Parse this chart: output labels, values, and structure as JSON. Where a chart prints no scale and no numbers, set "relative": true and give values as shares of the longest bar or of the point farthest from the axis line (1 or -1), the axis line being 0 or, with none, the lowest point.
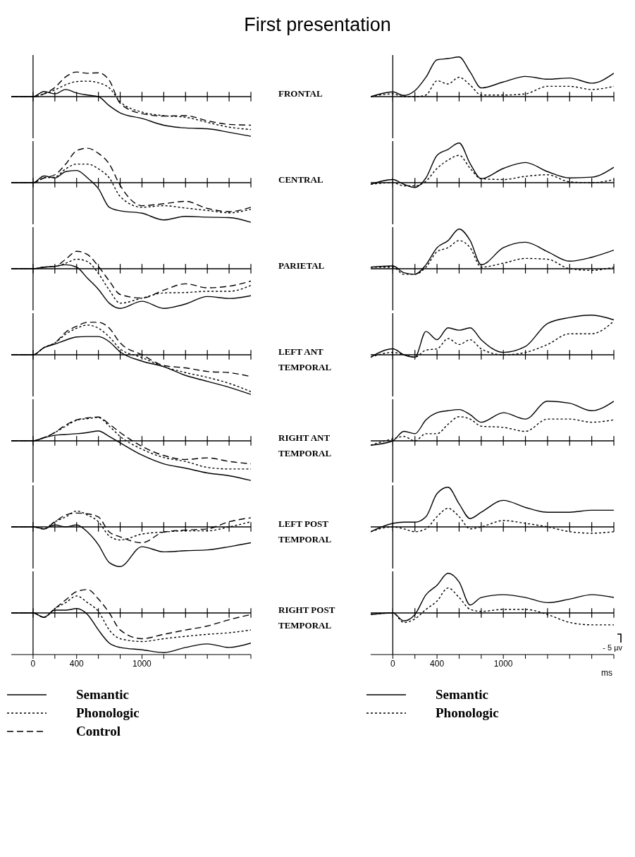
{
  "chart_data": [
    {
      "type": "line",
      "title": "First presentation",
      "relative": true,
      "x": [
        -200,
        0,
        100,
        200,
        300,
        400,
        500,
        600,
        700,
        800,
        1000,
        1200,
        1400,
        1600,
        1800,
        2000
      ],
      "xlim": [
        -200,
        2000
      ],
      "xticks": [
        0,
        {
          "value": 200,
          "label": null
        },
        400,
        {
          "value": 600,
          "label": null
        },
        {
          "value": 800,
          "label": null
        },
        1000,
        {
          "value": 1200,
          "label": null
        },
        {
          "value": 1400,
          "label": null
        },
        {
          "value": 1600,
          "label": null
        },
        {
          "value": 1800,
          "label": null
        },
        {
          "value": 2000,
          "label": null
        }
      ],
      "tick_labels": false,
      "series": [
        {
          "color": "#000000",
          "line_style": "solid",
          "values": [
            0,
            0,
            0.13,
            0.07,
            0.18,
            0.09,
            0.04,
            0,
            -0.23,
            -0.41,
            -0.55,
            -0.72,
            -0.79,
            -0.81,
            -0.9,
            -1
          ]
        },
        {
          "color": "#000000",
          "line_style": "dotted",
          "values": [
            0,
            0,
            0.07,
            0.17,
            0.3,
            0.38,
            0.39,
            0.35,
            0.22,
            -0.13,
            -0.39,
            -0.48,
            -0.52,
            -0.65,
            -0.77,
            -0.83
          ]
        },
        {
          "color": "#000000",
          "line_style": "dashed",
          "values": [
            0,
            0,
            0.07,
            0.23,
            0.5,
            0.62,
            0.59,
            0.6,
            0.41,
            -0.17,
            -0.43,
            -0.49,
            -0.48,
            -0.61,
            -0.7,
            -0.72
          ]
        }
      ]
    },
    {
      "type": "line",
      "ylabel": "FRONTAL",
      "relative": true,
      "x": [
        -200,
        0,
        100,
        200,
        300,
        400,
        500,
        600,
        700,
        800,
        1000,
        1200,
        1400,
        1600,
        1800,
        2000
      ],
      "xlim": [
        -200,
        2000
      ],
      "xticks": [
        0,
        {
          "value": 200,
          "label": null
        },
        400,
        {
          "value": 600,
          "label": null
        },
        {
          "value": 800,
          "label": null
        },
        1000,
        {
          "value": 1200,
          "label": null
        },
        {
          "value": 1400,
          "label": null
        },
        {
          "value": 1600,
          "label": null
        },
        {
          "value": 1800,
          "label": null
        },
        {
          "value": 2000,
          "label": null
        }
      ],
      "tick_labels": false,
      "series": [
        {
          "color": "#000000",
          "line_style": "solid",
          "values": [
            0,
            0.12,
            0.03,
            0.15,
            0.49,
            0.93,
            0.96,
            1,
            0.62,
            0.22,
            0.37,
            0.51,
            0.44,
            0.47,
            0.34,
            0.59
          ]
        },
        {
          "color": "#000000",
          "line_style": "dotted",
          "values": [
            0,
            0.07,
            0,
            0,
            0.04,
            0.4,
            0.32,
            0.49,
            0.29,
            0.04,
            0.04,
            0.07,
            0.26,
            0.26,
            0.18,
            0.26
          ]
        }
      ]
    },
    {
      "type": "line",
      "relative": true,
      "x": [
        -200,
        0,
        100,
        200,
        300,
        400,
        500,
        600,
        700,
        800,
        1000,
        1200,
        1400,
        1600,
        1800,
        2000
      ],
      "xlim": [
        -200,
        2000
      ],
      "xticks": [
        0,
        {
          "value": 200,
          "label": null
        },
        400,
        {
          "value": 600,
          "label": null
        },
        {
          "value": 800,
          "label": null
        },
        1000,
        {
          "value": 1200,
          "label": null
        },
        {
          "value": 1400,
          "label": null
        },
        {
          "value": 1600,
          "label": null
        },
        {
          "value": 1800,
          "label": null
        },
        {
          "value": 2000,
          "label": null
        }
      ],
      "tick_labels": false,
      "series": [
        {
          "color": "#000000",
          "line_style": "solid",
          "values": [
            0,
            0,
            0.17,
            0.12,
            0.28,
            0.31,
            0.12,
            -0.15,
            -0.62,
            -0.71,
            -0.77,
            -0.94,
            -0.85,
            -0.87,
            -0.88,
            -1
          ]
        },
        {
          "color": "#000000",
          "line_style": "dotted",
          "values": [
            0,
            0,
            0.12,
            0.14,
            0.35,
            0.47,
            0.47,
            0.35,
            0.12,
            -0.35,
            -0.62,
            -0.58,
            -0.64,
            -0.7,
            -0.76,
            -0.67
          ]
        },
        {
          "color": "#000000",
          "line_style": "dashed",
          "values": [
            0,
            0,
            0.12,
            0.2,
            0.47,
            0.81,
            0.87,
            0.74,
            0.47,
            -0.07,
            -0.58,
            -0.53,
            -0.47,
            -0.65,
            -0.73,
            -0.62
          ]
        }
      ]
    },
    {
      "type": "line",
      "ylabel": "CENTRAL",
      "relative": true,
      "x": [
        -200,
        0,
        100,
        200,
        300,
        400,
        500,
        600,
        700,
        800,
        1000,
        1200,
        1400,
        1600,
        1800,
        2000
      ],
      "xlim": [
        -200,
        2000
      ],
      "xticks": [
        0,
        {
          "value": 200,
          "label": null
        },
        400,
        {
          "value": 600,
          "label": null
        },
        {
          "value": 800,
          "label": null
        },
        1000,
        {
          "value": 1200,
          "label": null
        },
        {
          "value": 1400,
          "label": null
        },
        {
          "value": 1600,
          "label": null
        },
        {
          "value": 1800,
          "label": null
        },
        {
          "value": 2000,
          "label": null
        }
      ],
      "tick_labels": false,
      "series": [
        {
          "color": "#000000",
          "line_style": "solid",
          "values": [
            -0.04,
            0.08,
            -0.04,
            -0.12,
            0.12,
            0.69,
            0.84,
            1,
            0.48,
            0.1,
            0.36,
            0.51,
            0.28,
            0.12,
            0.14,
            0.39
          ]
        },
        {
          "color": "#000000",
          "line_style": "dotted",
          "values": [
            -0.04,
            0,
            -0.08,
            -0.08,
            0.04,
            0.36,
            0.57,
            0.69,
            0.36,
            0.1,
            0.08,
            0.16,
            0.2,
            0.02,
            0,
            0.08
          ]
        }
      ]
    },
    {
      "type": "line",
      "relative": true,
      "x": [
        -200,
        0,
        100,
        200,
        300,
        400,
        500,
        600,
        700,
        800,
        1000,
        1200,
        1400,
        1600,
        1800,
        2000
      ],
      "xlim": [
        -200,
        2000
      ],
      "xticks": [
        0,
        {
          "value": 200,
          "label": null
        },
        400,
        {
          "value": 600,
          "label": null
        },
        {
          "value": 800,
          "label": null
        },
        1000,
        {
          "value": 1200,
          "label": null
        },
        {
          "value": 1400,
          "label": null
        },
        {
          "value": 1600,
          "label": null
        },
        {
          "value": 1800,
          "label": null
        },
        {
          "value": 2000,
          "label": null
        }
      ],
      "tick_labels": false,
      "series": [
        {
          "color": "#000000",
          "line_style": "solid",
          "values": [
            0,
            0,
            0.04,
            0.06,
            0.1,
            0.04,
            -0.24,
            -0.52,
            -0.87,
            -1,
            -0.82,
            -1,
            -0.89,
            -0.7,
            -0.75,
            -0.68
          ]
        },
        {
          "color": "#000000",
          "line_style": "dotted",
          "values": [
            0,
            0,
            0.04,
            0.06,
            0.14,
            0.24,
            0.18,
            -0.12,
            -0.54,
            -0.87,
            -0.74,
            -0.61,
            -0.6,
            -0.57,
            -0.57,
            -0.42
          ]
        },
        {
          "color": "#000000",
          "line_style": "dashed",
          "values": [
            0,
            0,
            0.04,
            0.06,
            0.24,
            0.44,
            0.36,
            0.06,
            -0.31,
            -0.65,
            -0.74,
            -0.54,
            -0.38,
            -0.48,
            -0.44,
            -0.31
          ]
        }
      ]
    },
    {
      "type": "line",
      "ylabel": "PARIETAL",
      "relative": true,
      "x": [
        -200,
        0,
        100,
        200,
        300,
        400,
        500,
        600,
        700,
        800,
        1000,
        1200,
        1400,
        1600,
        1800,
        2000
      ],
      "xlim": [
        -200,
        2000
      ],
      "xticks": [
        0,
        {
          "value": 200,
          "label": null
        },
        400,
        {
          "value": 600,
          "label": null
        },
        {
          "value": 800,
          "label": null
        },
        1000,
        {
          "value": 1200,
          "label": null
        },
        {
          "value": 1400,
          "label": null
        },
        {
          "value": 1600,
          "label": null
        },
        {
          "value": 1800,
          "label": null
        },
        {
          "value": 2000,
          "label": null
        }
      ],
      "tick_labels": false,
      "series": [
        {
          "color": "#000000",
          "line_style": "solid",
          "values": [
            0.04,
            0.07,
            -0.1,
            -0.14,
            0.1,
            0.53,
            0.71,
            1,
            0.71,
            0.1,
            0.53,
            0.67,
            0.43,
            0.19,
            0.29,
            0.47
          ]
        },
        {
          "color": "#000000",
          "line_style": "dotted",
          "values": [
            0.04,
            0.04,
            -0.14,
            -0.14,
            0.04,
            0.43,
            0.53,
            0.71,
            0.53,
            0.04,
            0.14,
            0.26,
            0.24,
            0,
            -0.04,
            0.04
          ]
        }
      ]
    },
    {
      "type": "line",
      "relative": true,
      "x": [
        -200,
        0,
        100,
        200,
        300,
        400,
        500,
        600,
        700,
        800,
        1000,
        1200,
        1400,
        1600,
        1800,
        2000
      ],
      "xlim": [
        -200,
        2000
      ],
      "xticks": [
        0,
        {
          "value": 200,
          "label": null
        },
        400,
        {
          "value": 600,
          "label": null
        },
        {
          "value": 800,
          "label": null
        },
        1000,
        {
          "value": 1200,
          "label": null
        },
        {
          "value": 1400,
          "label": null
        },
        {
          "value": 1600,
          "label": null
        },
        {
          "value": 1800,
          "label": null
        },
        {
          "value": 2000,
          "label": null
        }
      ],
      "tick_labels": false,
      "series": [
        {
          "color": "#000000",
          "line_style": "solid",
          "values": [
            0,
            0,
            0.18,
            0.27,
            0.37,
            0.45,
            0.46,
            0.46,
            0.33,
            0.07,
            -0.16,
            -0.3,
            -0.52,
            -0.67,
            -0.82,
            -1
          ]
        },
        {
          "color": "#000000",
          "line_style": "dotted",
          "values": [
            0,
            0,
            0.18,
            0.3,
            0.52,
            0.67,
            0.75,
            0.67,
            0.45,
            0.15,
            -0.07,
            -0.3,
            -0.45,
            -0.57,
            -0.72,
            -0.93
          ]
        },
        {
          "color": "#000000",
          "line_style": "dashed",
          "values": [
            0,
            0,
            0.18,
            0.3,
            0.57,
            0.72,
            0.82,
            0.82,
            0.67,
            0.3,
            0,
            -0.27,
            -0.33,
            -0.42,
            -0.45,
            -0.55
          ]
        }
      ]
    },
    {
      "type": "line",
      "ylabel": "LEFT ANT TEMPORAL",
      "relative": true,
      "x": [
        -200,
        0,
        100,
        200,
        300,
        400,
        500,
        600,
        700,
        800,
        1000,
        1200,
        1400,
        1600,
        1800,
        2000
      ],
      "xlim": [
        -200,
        2000
      ],
      "xticks": [
        0,
        {
          "value": 200,
          "label": null
        },
        400,
        {
          "value": 600,
          "label": null
        },
        {
          "value": 800,
          "label": null
        },
        1000,
        {
          "value": 1200,
          "label": null
        },
        {
          "value": 1400,
          "label": null
        },
        {
          "value": 1600,
          "label": null
        },
        {
          "value": 1800,
          "label": null
        },
        {
          "value": 2000,
          "label": null
        }
      ],
      "tick_labels": false,
      "series": [
        {
          "color": "#000000",
          "line_style": "solid",
          "values": [
            -0.06,
            0.15,
            0,
            -0.06,
            0.59,
            0.38,
            0.68,
            0.62,
            0.68,
            0.38,
            0.06,
            0.21,
            0.79,
            0.94,
            1,
            0.88
          ]
        },
        {
          "color": "#000000",
          "line_style": "dotted",
          "values": [
            -0.06,
            0.06,
            0,
            -0.06,
            0.12,
            0.15,
            0.41,
            0.26,
            0.38,
            0.15,
            0,
            0.06,
            0.26,
            0.53,
            0.53,
            0.85
          ]
        }
      ]
    },
    {
      "type": "line",
      "relative": true,
      "x": [
        -200,
        0,
        100,
        200,
        300,
        400,
        500,
        600,
        700,
        800,
        1000,
        1200,
        1400,
        1600,
        1800,
        2000
      ],
      "xlim": [
        -200,
        2000
      ],
      "xticks": [
        0,
        {
          "value": 200,
          "label": null
        },
        400,
        {
          "value": 600,
          "label": null
        },
        {
          "value": 800,
          "label": null
        },
        1000,
        {
          "value": 1200,
          "label": null
        },
        {
          "value": 1400,
          "label": null
        },
        {
          "value": 1600,
          "label": null
        },
        {
          "value": 1800,
          "label": null
        },
        {
          "value": 2000,
          "label": null
        }
      ],
      "tick_labels": false,
      "series": [
        {
          "color": "#000000",
          "line_style": "solid",
          "values": [
            0,
            0,
            0.08,
            0.14,
            0.16,
            0.18,
            0.21,
            0.25,
            0.11,
            -0.05,
            -0.36,
            -0.58,
            -0.69,
            -0.81,
            -0.88,
            -1
          ]
        },
        {
          "color": "#000000",
          "line_style": "dotted",
          "values": [
            0,
            0,
            0.08,
            0.21,
            0.37,
            0.52,
            0.56,
            0.59,
            0.37,
            0.11,
            -0.21,
            -0.42,
            -0.52,
            -0.67,
            -0.71,
            -0.71
          ]
        },
        {
          "color": "#000000",
          "line_style": "dashed",
          "values": [
            0,
            0,
            0.08,
            0.21,
            0.4,
            0.53,
            0.58,
            0.6,
            0.42,
            0.21,
            -0.14,
            -0.37,
            -0.47,
            -0.43,
            -0.52,
            -0.58
          ]
        }
      ]
    },
    {
      "type": "line",
      "ylabel": "RIGHT ANT TEMPORAL",
      "relative": true,
      "x": [
        -200,
        0,
        100,
        200,
        300,
        400,
        500,
        600,
        700,
        800,
        1000,
        1200,
        1400,
        1600,
        1800,
        2000
      ],
      "xlim": [
        -200,
        2000
      ],
      "xticks": [
        0,
        {
          "value": 200,
          "label": null
        },
        400,
        {
          "value": 600,
          "label": null
        },
        {
          "value": 800,
          "label": null
        },
        1000,
        {
          "value": 1200,
          "label": null
        },
        {
          "value": 1400,
          "label": null
        },
        {
          "value": 1600,
          "label": null
        },
        {
          "value": 1800,
          "label": null
        },
        {
          "value": 2000,
          "label": null
        }
      ],
      "tick_labels": false,
      "series": [
        {
          "color": "#000000",
          "line_style": "solid",
          "values": [
            -0.11,
            0,
            0.24,
            0.18,
            0.53,
            0.71,
            0.76,
            0.79,
            0.66,
            0.47,
            0.71,
            0.55,
            1,
            0.95,
            0.76,
            1
          ]
        },
        {
          "color": "#000000",
          "line_style": "dotted",
          "values": [
            -0.11,
            0.05,
            0.11,
            0,
            0.18,
            0.18,
            0.42,
            0.61,
            0.55,
            0.37,
            0.34,
            0.24,
            0.55,
            0.55,
            0.47,
            0.53
          ]
        }
      ]
    },
    {
      "type": "line",
      "relative": true,
      "x": [
        -200,
        0,
        100,
        200,
        300,
        400,
        500,
        600,
        700,
        800,
        1000,
        1200,
        1400,
        1600,
        1800,
        2000
      ],
      "xlim": [
        -200,
        2000
      ],
      "xticks": [
        0,
        {
          "value": 200,
          "label": null
        },
        400,
        {
          "value": 600,
          "label": null
        },
        {
          "value": 800,
          "label": null
        },
        1000,
        {
          "value": 1200,
          "label": null
        },
        {
          "value": 1400,
          "label": null
        },
        {
          "value": 1600,
          "label": null
        },
        {
          "value": 1800,
          "label": null
        },
        {
          "value": 2000,
          "label": null
        }
      ],
      "tick_labels": false,
      "series": [
        {
          "color": "#000000",
          "line_style": "solid",
          "values": [
            0,
            0,
            -0.05,
            0.05,
            0,
            0.05,
            -0.13,
            -0.45,
            -0.9,
            -1,
            -0.5,
            -0.63,
            -0.6,
            -0.58,
            -0.5,
            -0.4
          ]
        },
        {
          "color": "#000000",
          "line_style": "dotted",
          "values": [
            0,
            0,
            -0.05,
            0.13,
            0.25,
            0.4,
            0.3,
            0.13,
            -0.23,
            -0.33,
            -0.18,
            -0.13,
            -0.1,
            -0.1,
            0,
            0.13
          ]
        },
        {
          "color": "#000000",
          "line_style": "dashed",
          "values": [
            0,
            0,
            -0.05,
            0.13,
            0.3,
            0.35,
            0.33,
            0.25,
            -0.13,
            -0.25,
            -0.4,
            -0.13,
            -0.08,
            -0.05,
            0.13,
            0.23
          ]
        }
      ]
    },
    {
      "type": "line",
      "ylabel": "LEFT POST TEMPORAL",
      "relative": true,
      "x": [
        -200,
        0,
        100,
        200,
        300,
        400,
        500,
        600,
        700,
        800,
        1000,
        1200,
        1400,
        1600,
        1800,
        2000
      ],
      "xlim": [
        -200,
        2000
      ],
      "xticks": [
        0,
        {
          "value": 200,
          "label": null
        },
        400,
        {
          "value": 600,
          "label": null
        },
        {
          "value": 800,
          "label": null
        },
        1000,
        {
          "value": 1200,
          "label": null
        },
        {
          "value": 1400,
          "label": null
        },
        {
          "value": 1600,
          "label": null
        },
        {
          "value": 1800,
          "label": null
        },
        {
          "value": 2000,
          "label": null
        }
      ],
      "tick_labels": false,
      "series": [
        {
          "color": "#000000",
          "line_style": "solid",
          "values": [
            -0.12,
            0.09,
            0.12,
            0.12,
            0.26,
            0.84,
            1,
            0.58,
            0.21,
            0.37,
            0.67,
            0.49,
            0.37,
            0.37,
            0.42,
            0.42
          ]
        },
        {
          "color": "#000000",
          "line_style": "dotted",
          "values": [
            -0.12,
            0,
            -0.05,
            -0.12,
            -0.05,
            0.26,
            0.47,
            0.26,
            -0.05,
            0,
            0.16,
            0.09,
            0,
            -0.12,
            -0.16,
            -0.12
          ]
        }
      ]
    },
    {
      "type": "line",
      "relative": true,
      "legend": "bottom",
      "x": [
        -200,
        0,
        100,
        200,
        300,
        400,
        500,
        600,
        700,
        800,
        1000,
        1200,
        1400,
        1600,
        1800,
        2000
      ],
      "xlim": [
        -200,
        2000
      ],
      "xticks": [
        0,
        {
          "value": 200,
          "label": null
        },
        400,
        {
          "value": 600,
          "label": null
        },
        {
          "value": 800,
          "label": null
        },
        1000,
        {
          "value": 1200,
          "label": null
        },
        {
          "value": 1400,
          "label": null
        },
        {
          "value": 1600,
          "label": null
        },
        {
          "value": 1800,
          "label": null
        },
        {
          "value": 2000,
          "label": null
        }
      ],
      "tick_labels": "x",
      "series": [
        {
          "name": "Semantic",
          "color": "#000000",
          "line_style": "solid",
          "values": [
            0,
            0,
            -0.11,
            0.07,
            0.07,
            0.11,
            -0.04,
            -0.43,
            -0.76,
            -0.87,
            -0.93,
            -1,
            -0.87,
            -0.78,
            -0.87,
            -0.76
          ]
        },
        {
          "name": "Phonologic",
          "color": "#000000",
          "line_style": "dotted",
          "values": [
            0,
            0,
            -0.11,
            0.11,
            0.26,
            0.43,
            0.26,
            0.04,
            -0.43,
            -0.65,
            -0.72,
            -0.65,
            -0.59,
            -0.54,
            -0.5,
            -0.43
          ]
        },
        {
          "name": "Control",
          "color": "#000000",
          "line_style": "dashed",
          "values": [
            0,
            0,
            -0.11,
            0.11,
            0.33,
            0.54,
            0.59,
            0.35,
            0,
            -0.43,
            -0.65,
            -0.54,
            -0.43,
            -0.33,
            -0.17,
            -0.04
          ]
        }
      ]
    },
    {
      "type": "line",
      "ylabel": "RIGHT POST TEMPORAL",
      "xlabel": "ms",
      "annotations": [
        "- 5 µv"
      ],
      "relative": true,
      "legend": "bottom",
      "x": [
        -200,
        0,
        100,
        200,
        300,
        400,
        500,
        600,
        700,
        800,
        1000,
        1200,
        1400,
        1600,
        1800,
        2000
      ],
      "xlim": [
        -200,
        2000
      ],
      "xticks": [
        0,
        {
          "value": 200,
          "label": null
        },
        400,
        {
          "value": 600,
          "label": null
        },
        {
          "value": 800,
          "label": null
        },
        1000,
        {
          "value": 1200,
          "label": null
        },
        {
          "value": 1400,
          "label": null
        },
        {
          "value": 1600,
          "label": null
        },
        {
          "value": 1800,
          "label": null
        },
        {
          "value": 2000,
          "label": null
        }
      ],
      "tick_labels": "x",
      "series": [
        {
          "name": "Semantic",
          "color": "#000000",
          "line_style": "solid",
          "values": [
            -0.04,
            0,
            -0.2,
            -0.04,
            0.46,
            0.7,
            1,
            0.78,
            0.2,
            0.39,
            0.46,
            0.39,
            0.26,
            0.35,
            0.46,
            0.39
          ]
        },
        {
          "name": "Phonologic",
          "color": "#000000",
          "line_style": "dotted",
          "values": [
            -0.04,
            0,
            -0.24,
            -0.15,
            0.09,
            0.3,
            0.63,
            0.39,
            0.09,
            0.04,
            0.09,
            0.09,
            -0.04,
            -0.24,
            -0.3,
            -0.3
          ]
        }
      ]
    }
  ]
}
